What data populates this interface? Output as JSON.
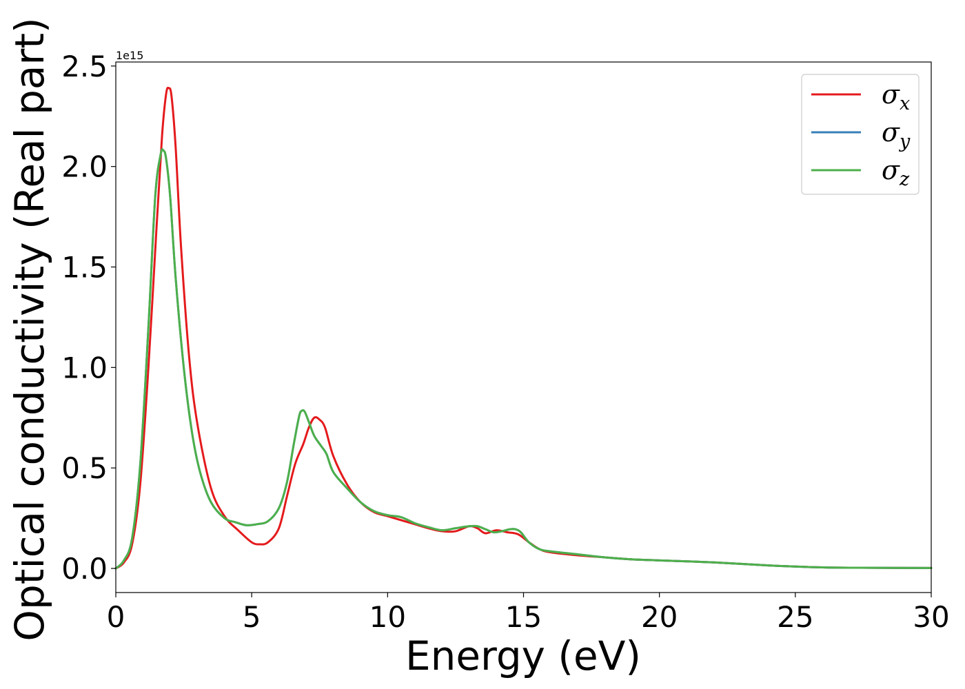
{
  "chart_data": {
    "type": "line",
    "title": "",
    "xlabel": "Energy (eV)",
    "ylabel": "Optical conductivity (Real part)",
    "y_offset_text": "1e15",
    "xlim": [
      0,
      30
    ],
    "ylim": [
      -0.12,
      2.52
    ],
    "xticks": [
      0,
      5,
      10,
      15,
      20,
      25,
      30
    ],
    "xtick_labels": [
      "0",
      "5",
      "10",
      "15",
      "20",
      "25",
      "30"
    ],
    "yticks": [
      0.0,
      0.5,
      1.0,
      1.5,
      2.0,
      2.5
    ],
    "ytick_labels": [
      "0.0",
      "0.5",
      "1.0",
      "1.5",
      "2.0",
      "2.5"
    ],
    "grid": false,
    "legend_position": "top-right",
    "series": [
      {
        "name": "σx",
        "name_base": "σ",
        "name_sub": "x",
        "color": "#e41a1c",
        "x": [
          0,
          0.3,
          0.6,
          0.9,
          1.2,
          1.5,
          1.7,
          1.85,
          1.95,
          2.05,
          2.2,
          2.4,
          2.7,
          3.0,
          3.5,
          4.0,
          4.5,
          5.0,
          5.3,
          5.6,
          6.0,
          6.3,
          6.6,
          6.9,
          7.1,
          7.3,
          7.5,
          7.7,
          8.0,
          8.5,
          9.0,
          9.5,
          10,
          10.5,
          11,
          11.5,
          12,
          12.5,
          13,
          13.3,
          13.6,
          14.0,
          14.4,
          14.8,
          15.2,
          15.6,
          16,
          17,
          18,
          19,
          20,
          22,
          24,
          26,
          28,
          30
        ],
        "values": [
          0.0,
          0.03,
          0.12,
          0.42,
          1.0,
          1.7,
          2.15,
          2.36,
          2.39,
          2.35,
          2.1,
          1.6,
          1.05,
          0.72,
          0.4,
          0.26,
          0.19,
          0.13,
          0.12,
          0.13,
          0.2,
          0.36,
          0.52,
          0.62,
          0.7,
          0.75,
          0.74,
          0.7,
          0.56,
          0.42,
          0.33,
          0.28,
          0.26,
          0.24,
          0.22,
          0.2,
          0.185,
          0.185,
          0.21,
          0.2,
          0.175,
          0.19,
          0.18,
          0.17,
          0.13,
          0.095,
          0.08,
          0.065,
          0.055,
          0.045,
          0.04,
          0.03,
          0.015,
          0.005,
          0.003,
          0.002
        ]
      },
      {
        "name": "σy",
        "name_base": "σ",
        "name_sub": "y",
        "color": "#377eb8",
        "x": [
          0,
          0.3,
          0.6,
          0.9,
          1.2,
          1.45,
          1.65,
          1.75,
          1.85,
          2.0,
          2.2,
          2.5,
          2.8,
          3.1,
          3.5,
          4.0,
          4.4,
          4.8,
          5.2,
          5.6,
          6.0,
          6.3,
          6.55,
          6.75,
          6.85,
          6.95,
          7.1,
          7.3,
          7.55,
          7.75,
          8.0,
          8.5,
          9.0,
          9.5,
          10,
          10.5,
          11,
          11.5,
          12,
          12.5,
          13,
          13.3,
          13.6,
          13.9,
          14.2,
          14.5,
          14.7,
          14.9,
          15.2,
          15.6,
          16,
          17,
          18,
          19,
          20,
          22,
          24,
          26,
          28,
          30
        ],
        "values": [
          0.0,
          0.04,
          0.15,
          0.52,
          1.2,
          1.85,
          2.06,
          2.08,
          2.04,
          1.85,
          1.45,
          1.0,
          0.68,
          0.48,
          0.33,
          0.25,
          0.23,
          0.215,
          0.22,
          0.235,
          0.3,
          0.43,
          0.62,
          0.76,
          0.785,
          0.78,
          0.73,
          0.66,
          0.61,
          0.57,
          0.48,
          0.4,
          0.33,
          0.285,
          0.265,
          0.255,
          0.225,
          0.205,
          0.19,
          0.2,
          0.21,
          0.21,
          0.195,
          0.18,
          0.185,
          0.195,
          0.195,
          0.18,
          0.13,
          0.095,
          0.085,
          0.07,
          0.055,
          0.045,
          0.04,
          0.03,
          0.015,
          0.005,
          0.003,
          0.002
        ]
      },
      {
        "name": "σz",
        "name_base": "σ",
        "name_sub": "z",
        "color": "#4daf4a",
        "x": [
          0,
          0.3,
          0.6,
          0.9,
          1.2,
          1.45,
          1.65,
          1.75,
          1.85,
          2.0,
          2.2,
          2.5,
          2.8,
          3.1,
          3.5,
          4.0,
          4.4,
          4.8,
          5.2,
          5.6,
          6.0,
          6.3,
          6.55,
          6.75,
          6.85,
          6.95,
          7.1,
          7.3,
          7.55,
          7.75,
          8.0,
          8.5,
          9.0,
          9.5,
          10,
          10.5,
          11,
          11.5,
          12,
          12.5,
          13,
          13.3,
          13.6,
          13.9,
          14.2,
          14.5,
          14.7,
          14.9,
          15.2,
          15.6,
          16,
          17,
          18,
          19,
          20,
          22,
          24,
          26,
          28,
          30
        ],
        "values": [
          0.0,
          0.04,
          0.15,
          0.52,
          1.2,
          1.85,
          2.06,
          2.08,
          2.04,
          1.85,
          1.45,
          1.0,
          0.68,
          0.48,
          0.33,
          0.25,
          0.23,
          0.215,
          0.22,
          0.235,
          0.3,
          0.43,
          0.62,
          0.76,
          0.785,
          0.78,
          0.73,
          0.66,
          0.61,
          0.57,
          0.48,
          0.4,
          0.33,
          0.285,
          0.265,
          0.255,
          0.225,
          0.205,
          0.19,
          0.2,
          0.21,
          0.21,
          0.195,
          0.18,
          0.185,
          0.195,
          0.195,
          0.18,
          0.13,
          0.095,
          0.085,
          0.07,
          0.055,
          0.045,
          0.04,
          0.03,
          0.015,
          0.005,
          0.003,
          0.002
        ]
      }
    ]
  }
}
